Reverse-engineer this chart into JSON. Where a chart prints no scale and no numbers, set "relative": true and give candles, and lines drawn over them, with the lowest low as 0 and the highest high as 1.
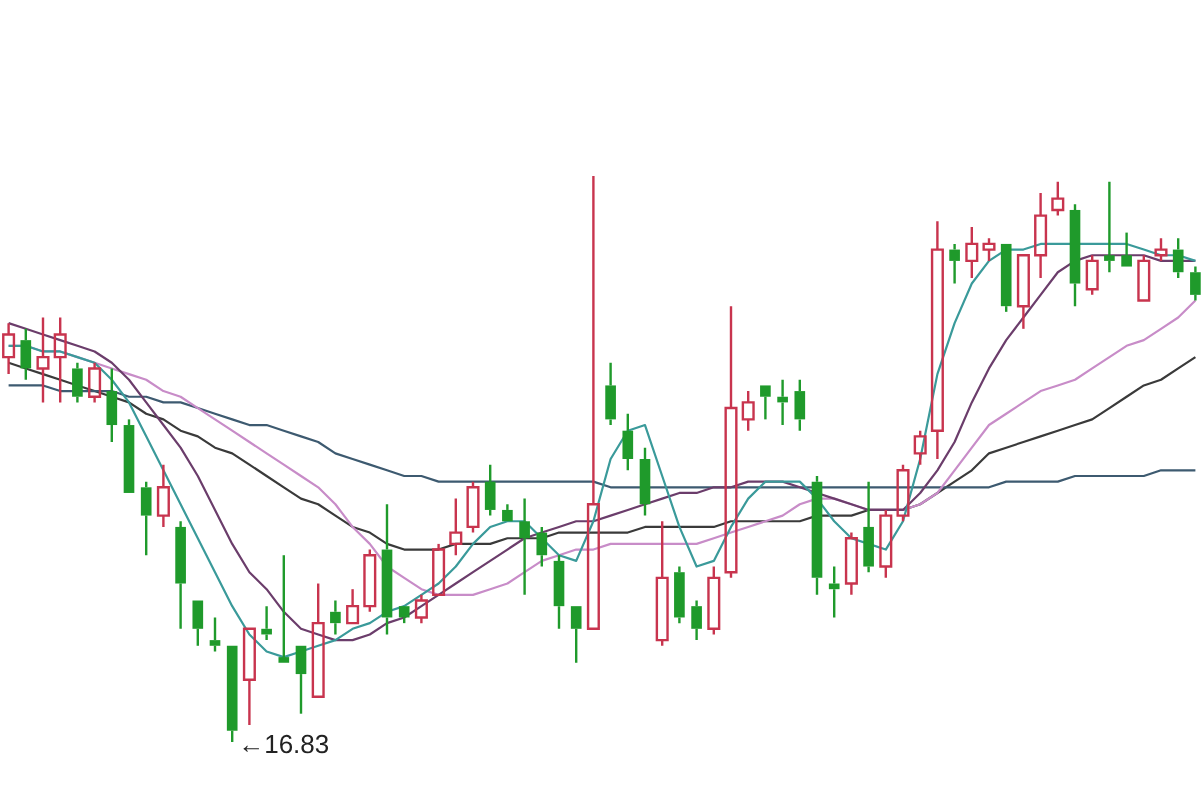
{
  "chart_data": {
    "type": "candlestick",
    "relative": true,
    "legend": false,
    "marker": "none",
    "line_style": "solid",
    "annotations": [
      "←16.83"
    ],
    "categories": [
      null,
      null,
      null,
      null,
      null,
      null,
      null,
      null,
      null,
      null,
      null,
      null,
      null,
      null,
      null,
      null,
      null,
      null,
      null,
      null,
      null,
      null,
      null,
      null,
      null,
      null,
      null,
      null,
      null,
      null,
      null,
      null,
      null,
      null,
      null,
      null,
      null,
      null,
      null,
      null,
      null,
      null,
      null,
      null,
      null,
      null,
      null,
      null,
      null,
      null,
      null,
      null,
      null,
      null,
      null,
      null,
      null,
      null,
      null,
      null,
      null,
      null,
      null,
      null,
      null,
      null,
      null,
      null,
      null,
      null
    ],
    "ohlc": [
      [
        0.68,
        0.74,
        0.65,
        0.72
      ],
      [
        0.71,
        0.73,
        0.64,
        0.66
      ],
      [
        0.66,
        0.75,
        0.6,
        0.68
      ],
      [
        0.68,
        0.75,
        0.6,
        0.72
      ],
      [
        0.66,
        0.67,
        0.6,
        0.61
      ],
      [
        0.61,
        0.67,
        0.6,
        0.66
      ],
      [
        0.62,
        0.66,
        0.53,
        0.56
      ],
      [
        0.56,
        0.57,
        0.44,
        0.44
      ],
      [
        0.45,
        0.46,
        0.33,
        0.4
      ],
      [
        0.4,
        0.49,
        0.38,
        0.45
      ],
      [
        0.38,
        0.39,
        0.2,
        0.28
      ],
      [
        0.25,
        0.25,
        0.17,
        0.2
      ],
      [
        0.18,
        0.22,
        0.16,
        0.17
      ],
      [
        0.17,
        0.17,
        0,
        0.02
      ],
      [
        0.11,
        0.2,
        0.03,
        0.2
      ],
      [
        0.2,
        0.24,
        0.18,
        0.19
      ],
      [
        0.15,
        0.33,
        0.14,
        0.14
      ],
      [
        0.17,
        0.17,
        0.05,
        0.12
      ],
      [
        0.08,
        0.28,
        0.08,
        0.21
      ],
      [
        0.23,
        0.25,
        0.19,
        0.21
      ],
      [
        0.21,
        0.27,
        0.21,
        0.24
      ],
      [
        0.24,
        0.34,
        0.23,
        0.33
      ],
      [
        0.34,
        0.42,
        0.19,
        0.22
      ],
      [
        0.24,
        0.24,
        0.21,
        0.22
      ],
      [
        0.22,
        0.26,
        0.21,
        0.25
      ],
      [
        0.26,
        0.35,
        0.26,
        0.34
      ],
      [
        0.35,
        0.43,
        0.33,
        0.37
      ],
      [
        0.38,
        0.46,
        0.37,
        0.45
      ],
      [
        0.46,
        0.49,
        0.4,
        0.41
      ],
      [
        0.41,
        0.42,
        0.39,
        0.39
      ],
      [
        0.39,
        0.43,
        0.26,
        0.36
      ],
      [
        0.37,
        0.38,
        0.31,
        0.33
      ],
      [
        0.32,
        0.33,
        0.2,
        0.24
      ],
      [
        0.24,
        0.24,
        0.14,
        0.2
      ],
      [
        0.2,
        1,
        0.2,
        0.42
      ],
      [
        0.63,
        0.67,
        0.56,
        0.57
      ],
      [
        0.55,
        0.58,
        0.48,
        0.5
      ],
      [
        0.5,
        0.52,
        0.4,
        0.42
      ],
      [
        0.18,
        0.39,
        0.17,
        0.29
      ],
      [
        0.3,
        0.31,
        0.21,
        0.22
      ],
      [
        0.24,
        0.25,
        0.18,
        0.2
      ],
      [
        0.2,
        0.31,
        0.19,
        0.29
      ],
      [
        0.3,
        0.77,
        0.29,
        0.59
      ],
      [
        0.57,
        0.62,
        0.55,
        0.6
      ],
      [
        0.63,
        0.63,
        0.57,
        0.61
      ],
      [
        0.61,
        0.64,
        0.56,
        0.6
      ],
      [
        0.62,
        0.64,
        0.55,
        0.57
      ],
      [
        0.46,
        0.47,
        0.26,
        0.29
      ],
      [
        0.28,
        0.31,
        0.22,
        0.27
      ],
      [
        0.28,
        0.37,
        0.26,
        0.36
      ],
      [
        0.38,
        0.46,
        0.3,
        0.31
      ],
      [
        0.31,
        0.41,
        0.29,
        0.4
      ],
      [
        0.4,
        0.49,
        0.39,
        0.48
      ],
      [
        0.51,
        0.55,
        0.49,
        0.54
      ],
      [
        0.55,
        0.92,
        0.5,
        0.87
      ],
      [
        0.87,
        0.88,
        0.81,
        0.85
      ],
      [
        0.85,
        0.91,
        0.82,
        0.88
      ],
      [
        0.87,
        0.89,
        0.85,
        0.88
      ],
      [
        0.88,
        0.88,
        0.76,
        0.77
      ],
      [
        0.77,
        0.86,
        0.73,
        0.86
      ],
      [
        0.86,
        0.97,
        0.82,
        0.93
      ],
      [
        0.94,
        0.99,
        0.93,
        0.96
      ],
      [
        0.94,
        0.95,
        0.77,
        0.81
      ],
      [
        0.8,
        0.86,
        0.79,
        0.85
      ],
      [
        0.86,
        0.99,
        0.83,
        0.85
      ],
      [
        0.86,
        0.9,
        0.84,
        0.84
      ],
      [
        0.78,
        0.86,
        0.78,
        0.85
      ],
      [
        0.86,
        0.89,
        0.85,
        0.87
      ],
      [
        0.87,
        0.89,
        0.82,
        0.83
      ],
      [
        0.83,
        0.84,
        0.78,
        0.79
      ]
    ],
    "series": [
      {
        "type": "line",
        "color": "#3a9a9a",
        "values": [
          0.7,
          0.7,
          0.69,
          0.69,
          0.68,
          0.67,
          0.64,
          0.6,
          0.54,
          0.48,
          0.42,
          0.36,
          0.3,
          0.24,
          0.19,
          0.16,
          0.15,
          0.16,
          0.17,
          0.18,
          0.2,
          0.21,
          0.23,
          0.24,
          0.26,
          0.28,
          0.31,
          0.35,
          0.38,
          0.39,
          0.39,
          0.36,
          0.33,
          0.32,
          0.39,
          0.5,
          0.55,
          0.56,
          0.47,
          0.38,
          0.31,
          0.32,
          0.38,
          0.43,
          0.46,
          0.46,
          0.46,
          0.43,
          0.39,
          0.36,
          0.35,
          0.34,
          0.39,
          0.5,
          0.65,
          0.74,
          0.81,
          0.85,
          0.87,
          0.87,
          0.88,
          0.88,
          0.88,
          0.88,
          0.88,
          0.88,
          0.87,
          0.86,
          0.86,
          0.85
        ]
      },
      {
        "type": "line",
        "color": "#6b3d6b",
        "values": [
          0.74,
          0.73,
          0.72,
          0.71,
          0.7,
          0.69,
          0.67,
          0.64,
          0.6,
          0.56,
          0.52,
          0.47,
          0.41,
          0.35,
          0.3,
          0.27,
          0.23,
          0.2,
          0.19,
          0.18,
          0.18,
          0.19,
          0.21,
          0.22,
          0.24,
          0.26,
          0.28,
          0.3,
          0.32,
          0.34,
          0.36,
          0.37,
          0.38,
          0.39,
          0.39,
          0.4,
          0.41,
          0.42,
          0.43,
          0.44,
          0.44,
          0.45,
          0.45,
          0.46,
          0.46,
          0.46,
          0.45,
          0.44,
          0.43,
          0.42,
          0.41,
          0.41,
          0.41,
          0.44,
          0.48,
          0.53,
          0.6,
          0.66,
          0.71,
          0.75,
          0.79,
          0.83,
          0.85,
          0.86,
          0.86,
          0.86,
          0.86,
          0.85,
          0.85,
          0.85
        ]
      },
      {
        "type": "line",
        "color": "#c88cc8",
        "values": [
          0.7,
          0.7,
          0.69,
          0.69,
          0.68,
          0.67,
          0.66,
          0.65,
          0.64,
          0.62,
          0.61,
          0.59,
          0.57,
          0.55,
          0.53,
          0.51,
          0.49,
          0.47,
          0.45,
          0.42,
          0.38,
          0.35,
          0.31,
          0.29,
          0.27,
          0.26,
          0.26,
          0.26,
          0.27,
          0.28,
          0.3,
          0.32,
          0.33,
          0.34,
          0.34,
          0.35,
          0.35,
          0.35,
          0.35,
          0.35,
          0.35,
          0.36,
          0.37,
          0.38,
          0.39,
          0.4,
          0.42,
          0.43,
          0.43,
          0.42,
          0.41,
          0.41,
          0.41,
          0.42,
          0.44,
          0.48,
          0.52,
          0.56,
          0.58,
          0.6,
          0.62,
          0.63,
          0.64,
          0.66,
          0.68,
          0.7,
          0.71,
          0.73,
          0.75,
          0.78
        ]
      },
      {
        "type": "line",
        "color": "#3d5a70",
        "values": [
          0.63,
          0.63,
          0.63,
          0.62,
          0.62,
          0.62,
          0.62,
          0.61,
          0.61,
          0.6,
          0.6,
          0.59,
          0.58,
          0.57,
          0.56,
          0.56,
          0.55,
          0.54,
          0.53,
          0.51,
          0.5,
          0.49,
          0.48,
          0.47,
          0.47,
          0.46,
          0.46,
          0.46,
          0.46,
          0.46,
          0.46,
          0.46,
          0.46,
          0.46,
          0.46,
          0.45,
          0.45,
          0.45,
          0.45,
          0.45,
          0.45,
          0.45,
          0.45,
          0.45,
          0.45,
          0.45,
          0.45,
          0.45,
          0.45,
          0.45,
          0.45,
          0.45,
          0.45,
          0.45,
          0.45,
          0.45,
          0.45,
          0.45,
          0.46,
          0.46,
          0.46,
          0.46,
          0.47,
          0.47,
          0.47,
          0.47,
          0.47,
          0.48,
          0.48,
          0.48
        ]
      },
      {
        "type": "line",
        "color": "#3a3a3a",
        "values": [
          0.67,
          0.66,
          0.65,
          0.64,
          0.63,
          0.62,
          0.61,
          0.6,
          0.58,
          0.57,
          0.55,
          0.54,
          0.52,
          0.51,
          0.49,
          0.47,
          0.45,
          0.43,
          0.42,
          0.4,
          0.38,
          0.37,
          0.35,
          0.34,
          0.34,
          0.34,
          0.35,
          0.35,
          0.35,
          0.36,
          0.36,
          0.36,
          0.37,
          0.37,
          0.37,
          0.37,
          0.37,
          0.38,
          0.38,
          0.38,
          0.38,
          0.38,
          0.39,
          0.39,
          0.39,
          0.39,
          0.39,
          0.4,
          0.4,
          0.4,
          0.41,
          0.41,
          0.41,
          0.42,
          0.44,
          0.46,
          0.48,
          0.51,
          0.52,
          0.53,
          0.54,
          0.55,
          0.56,
          0.57,
          0.59,
          0.61,
          0.63,
          0.64,
          0.66,
          0.68
        ]
      }
    ]
  }
}
